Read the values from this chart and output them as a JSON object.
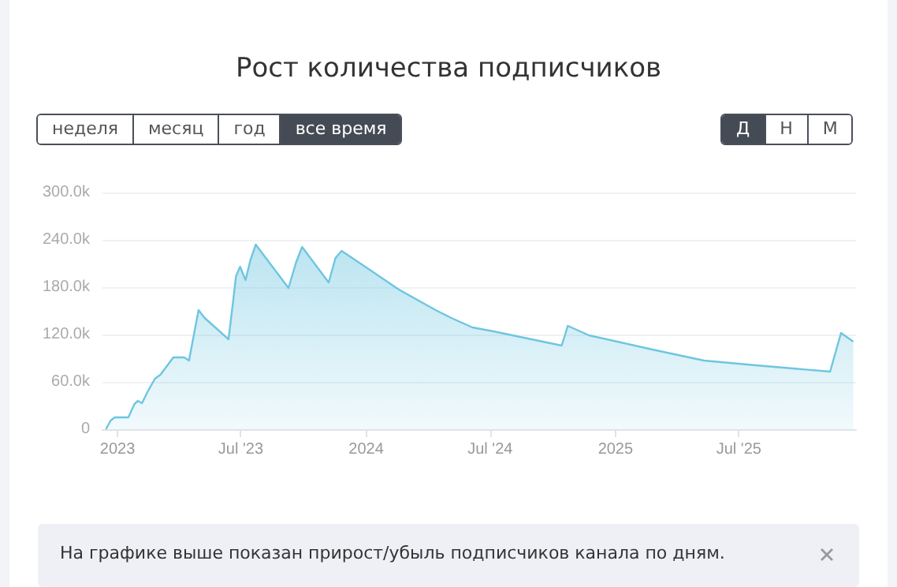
{
  "chart_data": {
    "type": "area",
    "title": "Рост количества подписчиков",
    "x": [
      "2022-12-15",
      "2022-12-22",
      "2022-12-28",
      "2023-01-17",
      "2023-01-26",
      "2023-01-31",
      "2023-02-06",
      "2023-02-14",
      "2023-02-25",
      "2023-03-05",
      "2023-03-24",
      "2023-04-09",
      "2023-04-16",
      "2023-04-30",
      "2023-05-09",
      "2023-06-13",
      "2023-06-20",
      "2023-06-24",
      "2023-06-30",
      "2023-07-08",
      "2023-07-15",
      "2023-07-23",
      "2023-09-09",
      "2023-09-20",
      "2023-09-29",
      "2023-11-07",
      "2023-11-17",
      "2023-11-26",
      "2024-01-03",
      "2024-02-18",
      "2024-04-12",
      "2024-05-05",
      "2024-06-05",
      "2024-07-06",
      "2024-10-14",
      "2024-10-23",
      "2024-11-23",
      "2025-02-24",
      "2025-05-11",
      "2025-07-26",
      "2025-11-12",
      "2025-11-28",
      "2025-12-16"
    ],
    "series": [
      {
        "color": "#6ec6e0",
        "values": [
          0,
          11000,
          15000,
          15000,
          32000,
          36000,
          33000,
          47000,
          64000,
          69000,
          91000,
          91000,
          87000,
          151000,
          141000,
          114000,
          164000,
          194000,
          206000,
          189000,
          214000,
          234000,
          179000,
          211000,
          231000,
          186000,
          217000,
          226000,
          204000,
          177000,
          151000,
          141000,
          129000,
          124000,
          106000,
          131000,
          119000,
          101000,
          87000,
          81000,
          73000,
          122000,
          111000
        ]
      }
    ],
    "xlim": [
      "2022-12-10",
      "2025-12-20"
    ],
    "xticks": [
      {
        "value": "2023-01-01",
        "label": "2023"
      },
      {
        "value": "2023-07-01",
        "label": "Jul '23"
      },
      {
        "value": "2024-01-01",
        "label": "2024"
      },
      {
        "value": "2024-07-01",
        "label": "Jul '24"
      },
      {
        "value": "2025-01-01",
        "label": "2025"
      },
      {
        "value": "2025-07-01",
        "label": "Jul '25"
      }
    ],
    "ylim": [
      0,
      300000
    ],
    "yticks": [
      0,
      {
        "value": 60000,
        "label": "60.0k"
      },
      {
        "value": 120000,
        "label": "120.0k"
      },
      {
        "value": 180000,
        "label": "180.0k"
      },
      {
        "value": 240000,
        "label": "240.0k"
      },
      {
        "value": 300000,
        "label": "300.0k"
      }
    ],
    "grid": "y",
    "marker": "none",
    "line_style": "solid",
    "annotations": [
      "неделя",
      "месяц",
      "год",
      "все время",
      "Д",
      "Н",
      "М",
      "На графике выше показан прирост/убыль подписчиков канала по дням."
    ]
  }
}
